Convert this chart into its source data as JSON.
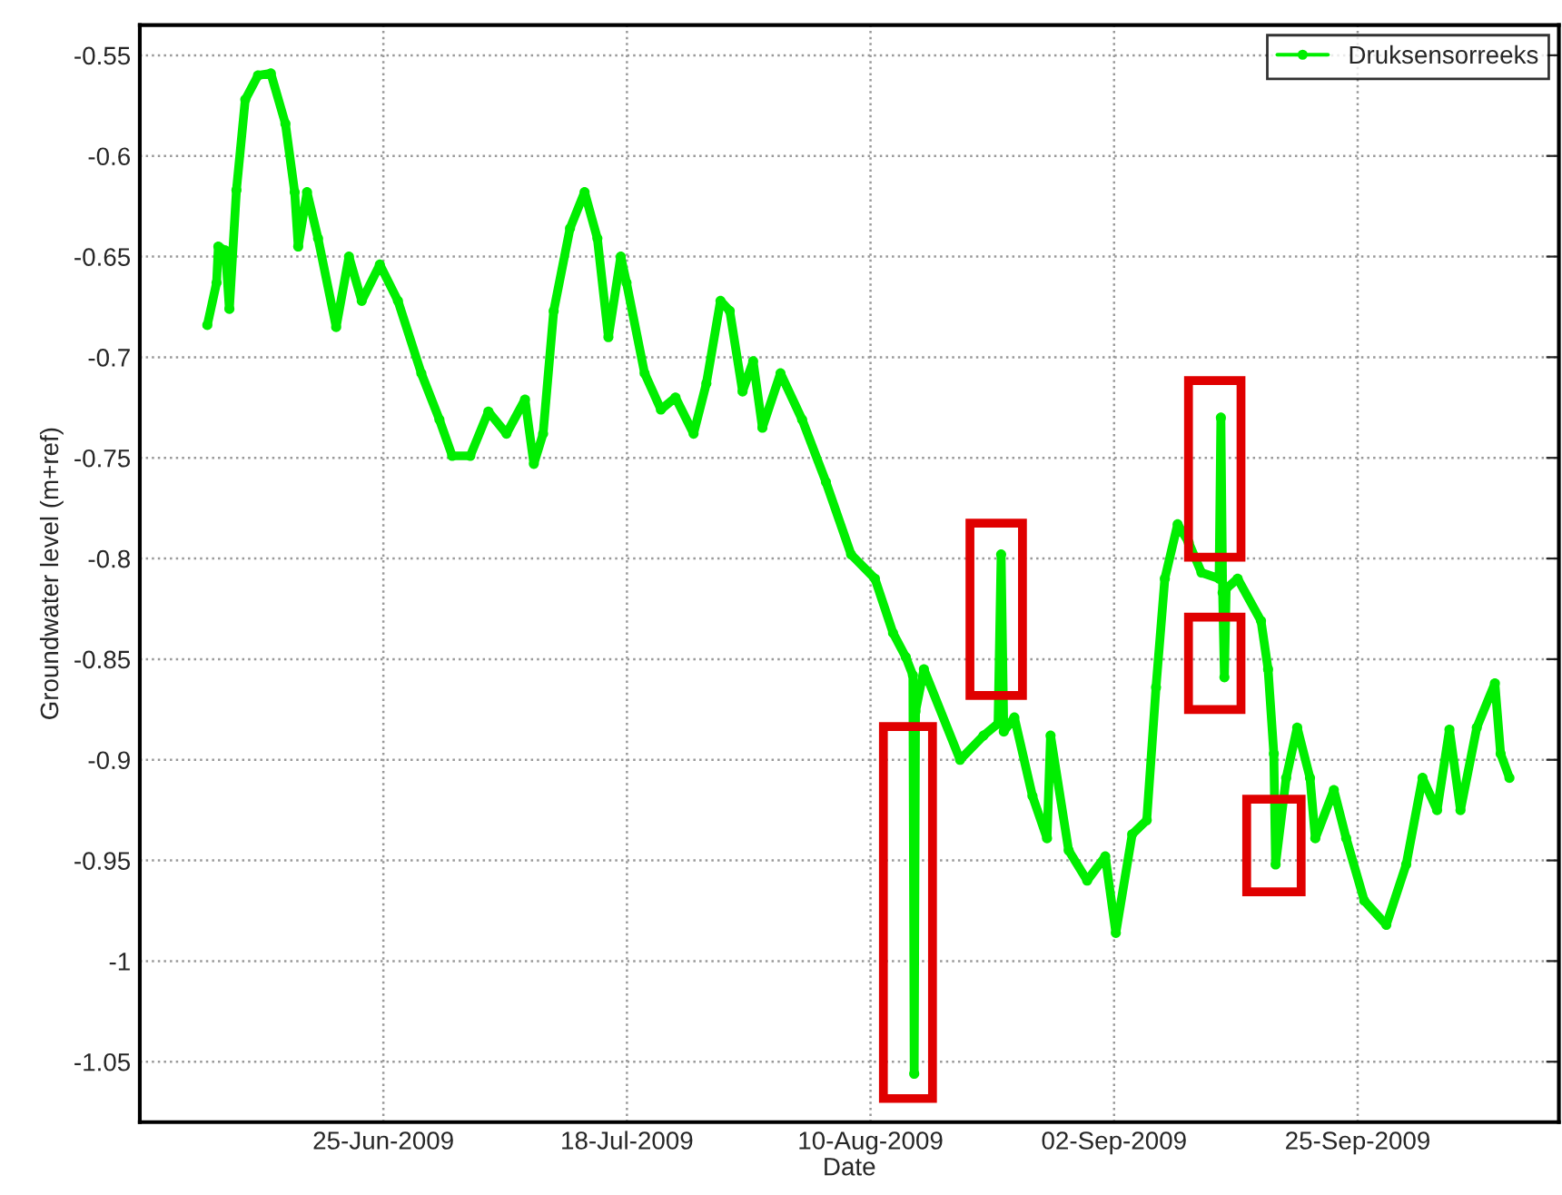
{
  "chart_data": {
    "type": "line",
    "xlabel": "Date",
    "ylabel": "Groundwater level (m+ref)",
    "x": [
      "2009-06-08T09:00",
      "2009-06-09T06:00",
      "2009-06-09T10:00",
      "2009-06-10T02:00",
      "2009-06-10T11:00",
      "2009-06-11T03:00",
      "2009-06-11T23:00",
      "2009-06-13T04:00",
      "2009-06-14T09:00",
      "2009-06-15T18:00",
      "2009-06-16T15:00",
      "2009-06-16T23:00",
      "2009-06-17T19:00",
      "2009-06-18T20:00",
      "2009-06-20T13:00",
      "2009-06-21T18:00",
      "2009-06-22T23:00",
      "2009-06-24T16:00",
      "2009-06-26T09:00",
      "2009-06-28T14:00",
      "2009-06-30T07:00",
      "2009-07-01T12:00",
      "2009-07-03T05:00",
      "2009-07-04T22:00",
      "2009-07-06T15:00",
      "2009-07-08T09:00",
      "2009-07-09T05:00",
      "2009-07-10T02:00",
      "2009-07-11T02:00",
      "2009-07-12T15:00",
      "2009-07-14T00:00",
      "2009-07-15T05:00",
      "2009-07-16T06:00",
      "2009-07-17T10:00",
      "2009-07-17T23:00",
      "2009-07-19T16:00",
      "2009-07-21T05:00",
      "2009-07-22T14:00",
      "2009-07-24T07:00",
      "2009-07-25T12:00",
      "2009-07-26T20:00",
      "2009-07-27T17:00",
      "2009-07-28T22:00",
      "2009-07-29T22:00",
      "2009-07-30T19:00",
      "2009-08-01T12:00",
      "2009-08-03T13:00",
      "2009-08-05T19:00",
      "2009-08-08T04:00",
      "2009-08-10T10:00",
      "2009-08-12T03:00",
      "2009-08-13T08:00",
      "2009-08-14T00:00",
      "2009-08-14T03:00",
      "2009-08-14T06:00",
      "2009-08-15T01:00",
      "2009-08-18T11:00",
      "2009-08-20T16:00",
      "2009-08-22T01:00",
      "2009-08-22T08:00",
      "2009-08-22T14:00",
      "2009-08-23T14:00",
      "2009-08-25T07:00",
      "2009-08-26T16:00",
      "2009-08-27T00:00",
      "2009-08-28T17:00",
      "2009-08-30T11:00",
      "2009-09-01T04:00",
      "2009-09-02T04:00",
      "2009-09-03T17:00",
      "2009-09-05T02:00",
      "2009-09-05T23:00",
      "2009-09-06T19:00",
      "2009-09-08T00:00",
      "2009-09-09T01:00",
      "2009-09-10T06:00",
      "2009-09-11T22:00",
      "2009-09-12T02:00",
      "2009-09-12T06:00",
      "2009-09-12T10:00",
      "2009-09-12T14:00",
      "2009-09-13T16:00",
      "2009-09-15T21:00",
      "2009-09-16T13:00",
      "2009-09-17T02:00",
      "2009-09-17T06:00",
      "2009-09-18T06:00",
      "2009-09-19T07:00",
      "2009-09-20T12:00",
      "2009-09-21T00:00",
      "2009-09-22T18:00",
      "2009-09-23T22:00",
      "2009-09-25T15:00",
      "2009-09-27T17:00",
      "2009-09-29T14:00",
      "2009-10-01T03:00",
      "2009-10-02T12:00",
      "2009-10-03T16:00",
      "2009-10-04T17:00",
      "2009-10-06T06:00",
      "2009-10-07T23:00",
      "2009-10-08T12:00",
      "2009-10-09T08:00"
    ],
    "series": [
      {
        "name": "Druksensorreeks",
        "color": "#00ee00",
        "values": [
          -0.684,
          -0.663,
          -0.645,
          -0.647,
          -0.676,
          -0.617,
          -0.572,
          -0.56,
          -0.559,
          -0.584,
          -0.618,
          -0.645,
          -0.618,
          -0.641,
          -0.685,
          -0.65,
          -0.672,
          -0.654,
          -0.672,
          -0.708,
          -0.731,
          -0.749,
          -0.749,
          -0.727,
          -0.738,
          -0.721,
          -0.753,
          -0.738,
          -0.677,
          -0.636,
          -0.618,
          -0.641,
          -0.69,
          -0.65,
          -0.663,
          -0.708,
          -0.726,
          -0.72,
          -0.738,
          -0.713,
          -0.672,
          -0.677,
          -0.717,
          -0.702,
          -0.735,
          -0.708,
          -0.731,
          -0.762,
          -0.798,
          -0.81,
          -0.837,
          -0.849,
          -0.858,
          -1.056,
          -0.876,
          -0.855,
          -0.9,
          -0.888,
          -0.882,
          -0.798,
          -0.886,
          -0.879,
          -0.918,
          -0.939,
          -0.888,
          -0.945,
          -0.96,
          -0.948,
          -0.986,
          -0.937,
          -0.93,
          -0.864,
          -0.81,
          -0.783,
          -0.792,
          -0.807,
          -0.81,
          -0.73,
          -0.817,
          -0.859,
          -0.815,
          -0.81,
          -0.831,
          -0.855,
          -0.897,
          -0.952,
          -0.909,
          -0.884,
          -0.909,
          -0.939,
          -0.915,
          -0.939,
          -0.97,
          -0.982,
          -0.952,
          -0.909,
          -0.925,
          -0.885,
          -0.925,
          -0.884,
          -0.862,
          -0.897,
          -0.909
        ]
      }
    ],
    "xlim": [
      "2009-06-02",
      "2009-10-14"
    ],
    "xticks": [
      {
        "value": "2009-06-25",
        "label": "25-Jun-2009"
      },
      {
        "value": "2009-07-18",
        "label": "18-Jul-2009"
      },
      {
        "value": "2009-08-10",
        "label": "10-Aug-2009"
      },
      {
        "value": "2009-09-02",
        "label": "02-Sep-2009"
      },
      {
        "value": "2009-09-25",
        "label": "25-Sep-2009"
      }
    ],
    "ylim": [
      -1.08,
      -0.535
    ],
    "yticks": [
      -1.05,
      -1,
      -0.95,
      -0.9,
      -0.85,
      -0.8,
      -0.75,
      -0.7,
      -0.65,
      -0.6,
      -0.55
    ],
    "grid": true,
    "legend": "top right",
    "marker": "circle",
    "line_style": "solid"
  }
}
